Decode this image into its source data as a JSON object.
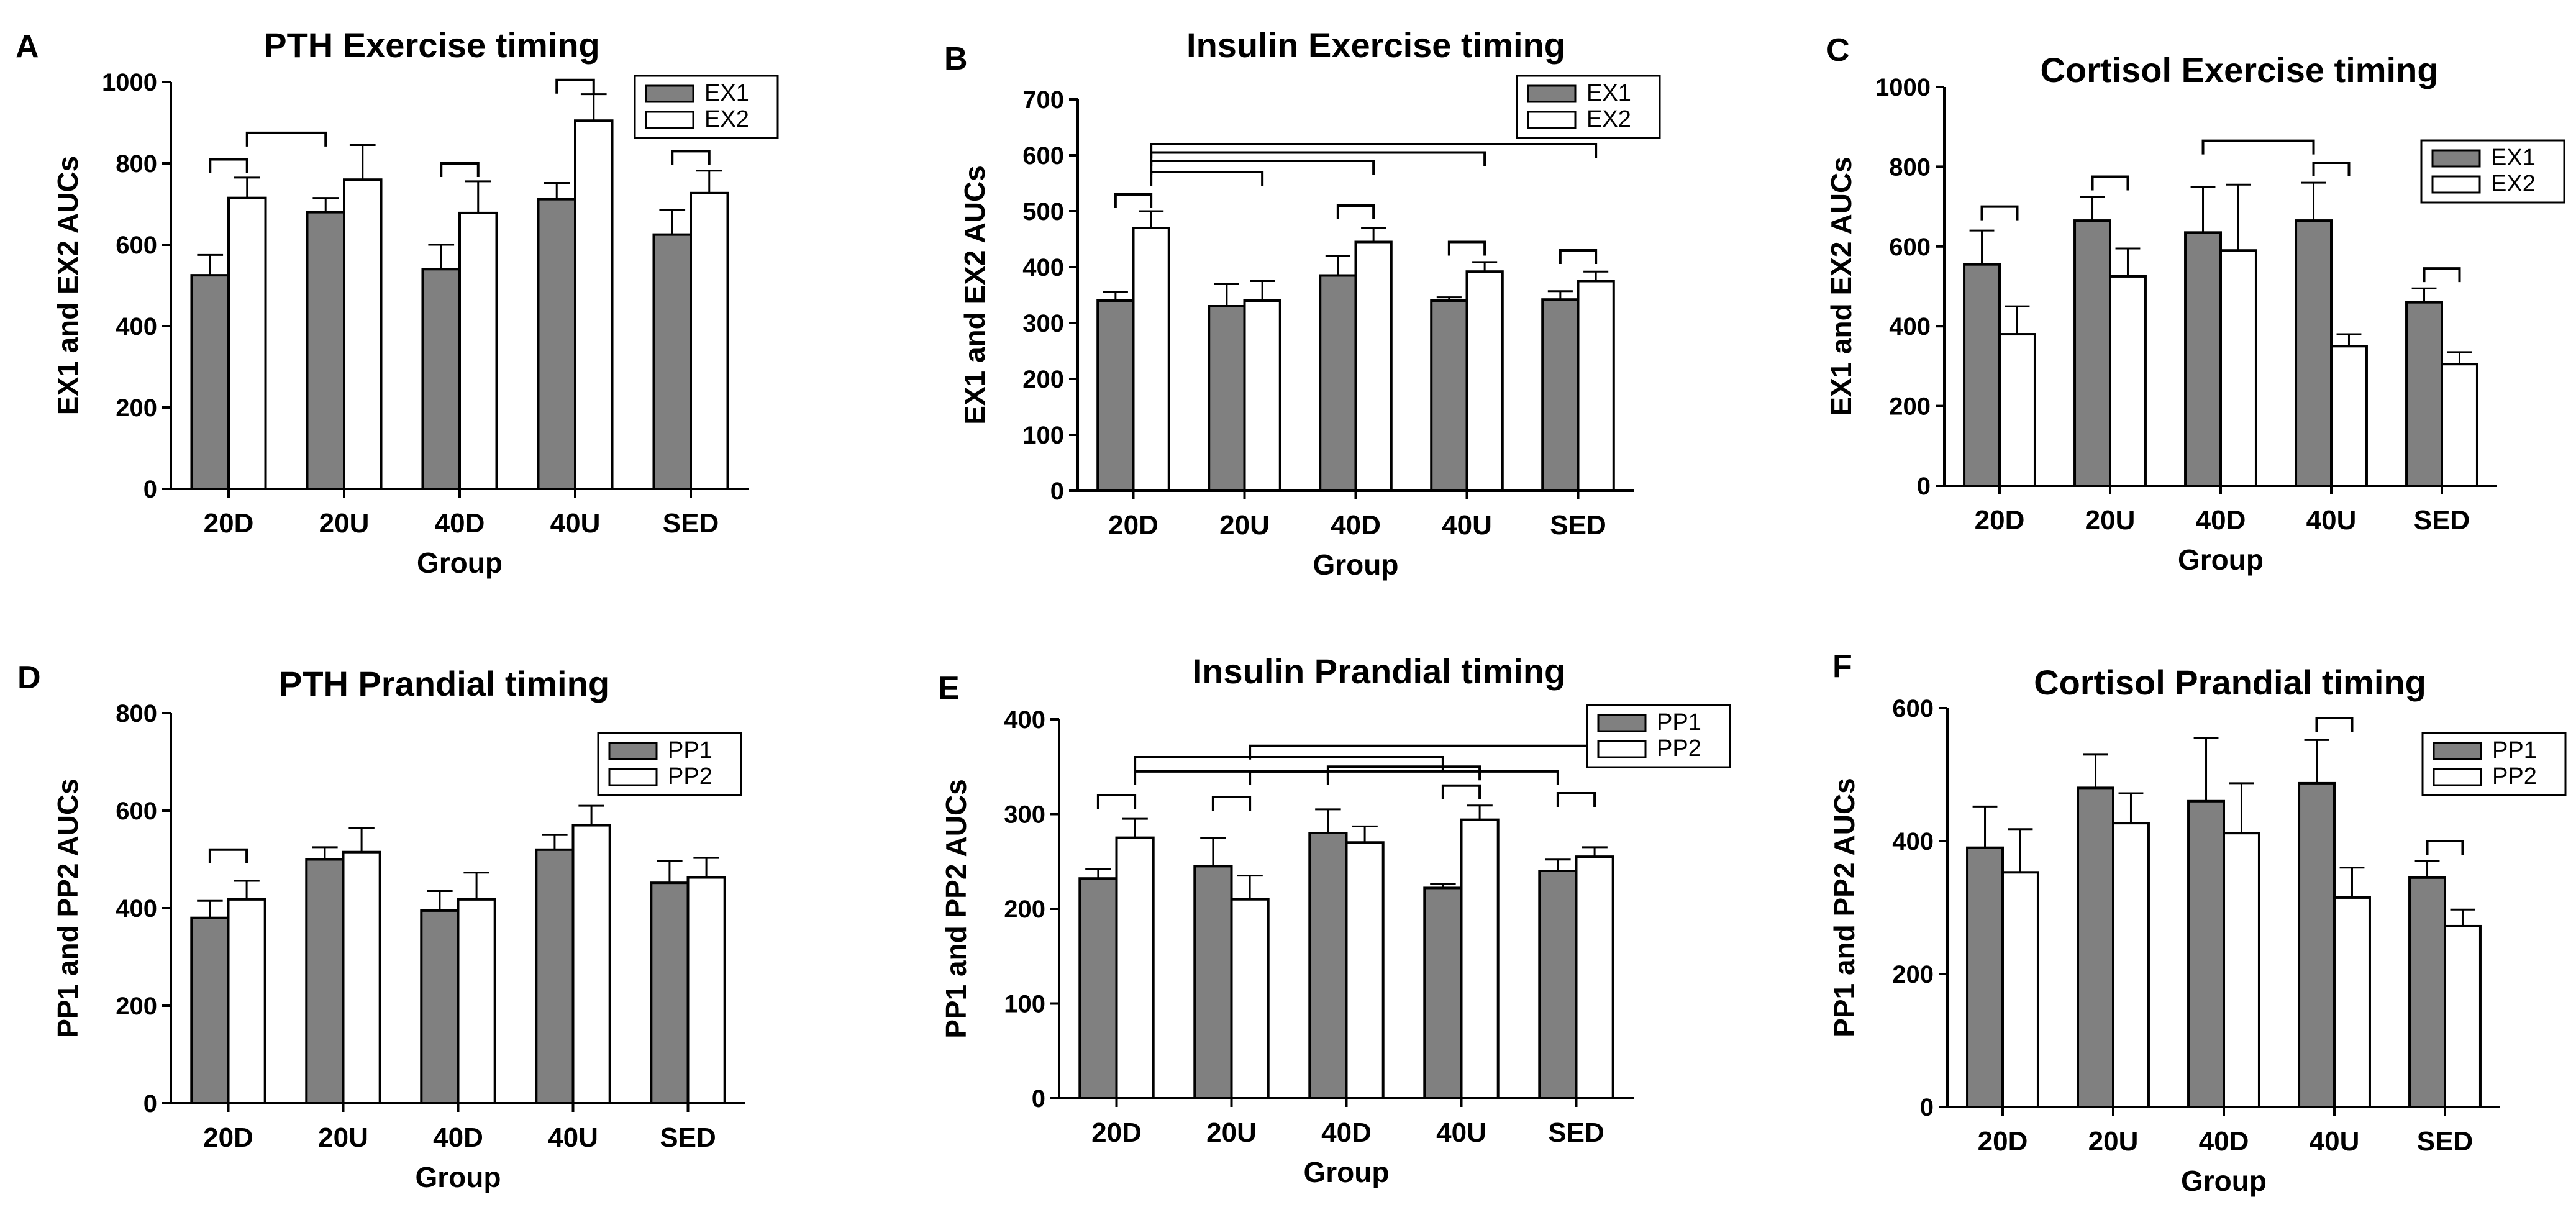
{
  "figure": {
    "layout": "2 rows x 3 panels"
  },
  "chart_data": [
    {
      "panel": "A",
      "type": "bar",
      "title": "PTH Exercise timing",
      "xlabel": "Group",
      "ylabel": "EX1 and EX2 AUCs",
      "ylim": [
        0,
        1000
      ],
      "yticks": [
        0,
        200,
        400,
        600,
        800,
        1000
      ],
      "categories": [
        "20D",
        "20U",
        "40D",
        "40U",
        "SED"
      ],
      "legend_position": "top-right",
      "series": [
        {
          "name": "EX1",
          "values": [
            525,
            680,
            540,
            712,
            625
          ],
          "errors": [
            50,
            35,
            60,
            40,
            60
          ],
          "color": "#808080"
        },
        {
          "name": "EX2",
          "values": [
            715,
            760,
            678,
            905,
            727
          ],
          "errors": [
            50,
            85,
            78,
            65,
            55
          ],
          "color": "#ffffff"
        }
      ],
      "significance": [
        {
          "a": [
            0,
            0
          ],
          "b": [
            0,
            1
          ],
          "y": 810
        },
        {
          "a": [
            2,
            0
          ],
          "b": [
            2,
            1
          ],
          "y": 800
        },
        {
          "a": [
            3,
            0
          ],
          "b": [
            3,
            1
          ],
          "y": 1005
        },
        {
          "a": [
            4,
            0
          ],
          "b": [
            4,
            1
          ],
          "y": 830
        },
        {
          "a": [
            0,
            1
          ],
          "b": [
            1,
            0
          ],
          "y": 875
        }
      ]
    },
    {
      "panel": "B",
      "type": "bar",
      "title": "Insulin Exercise timing",
      "xlabel": "Group",
      "ylabel": "EX1 and EX2 AUCs",
      "ylim": [
        0,
        700
      ],
      "yticks": [
        0,
        100,
        200,
        300,
        400,
        500,
        600,
        700
      ],
      "categories": [
        "20D",
        "20U",
        "40D",
        "40U",
        "SED"
      ],
      "legend_position": "top-right",
      "series": [
        {
          "name": "EX1",
          "values": [
            340,
            330,
            385,
            340,
            342
          ],
          "errors": [
            15,
            40,
            35,
            6,
            15
          ],
          "color": "#808080"
        },
        {
          "name": "EX2",
          "values": [
            470,
            340,
            445,
            392,
            375
          ],
          "errors": [
            30,
            35,
            25,
            17,
            17
          ],
          "color": "#ffffff"
        }
      ],
      "significance": [
        {
          "a": [
            0,
            0
          ],
          "b": [
            0,
            1
          ],
          "y": 530
        },
        {
          "a": [
            2,
            0
          ],
          "b": [
            2,
            1
          ],
          "y": 510
        },
        {
          "a": [
            3,
            0
          ],
          "b": [
            3,
            1
          ],
          "y": 445
        },
        {
          "a": [
            4,
            0
          ],
          "b": [
            4,
            1
          ],
          "y": 430
        },
        {
          "a": [
            0,
            1
          ],
          "b": [
            1,
            1
          ],
          "y": 570
        },
        {
          "a": [
            0,
            1
          ],
          "b": [
            2,
            1
          ],
          "y": 590
        },
        {
          "a": [
            0,
            1
          ],
          "b": [
            3,
            1
          ],
          "y": 605
        },
        {
          "a": [
            0,
            1
          ],
          "b": [
            4,
            1
          ],
          "y": 620
        }
      ]
    },
    {
      "panel": "C",
      "type": "bar",
      "title": "Cortisol Exercise timing",
      "xlabel": "Group",
      "ylabel": "EX1 and EX2 AUCs",
      "ylim": [
        0,
        1000
      ],
      "yticks": [
        0,
        200,
        400,
        600,
        800,
        1000
      ],
      "categories": [
        "20D",
        "20U",
        "40D",
        "40U",
        "SED"
      ],
      "legend_position": "top-right",
      "series": [
        {
          "name": "EX1",
          "values": [
            555,
            665,
            635,
            665,
            460
          ],
          "errors": [
            85,
            60,
            115,
            95,
            35
          ],
          "color": "#808080"
        },
        {
          "name": "EX2",
          "values": [
            380,
            525,
            590,
            350,
            305
          ],
          "errors": [
            70,
            70,
            165,
            30,
            30
          ],
          "color": "#ffffff"
        }
      ],
      "significance": [
        {
          "a": [
            0,
            0
          ],
          "b": [
            0,
            1
          ],
          "y": 700
        },
        {
          "a": [
            1,
            0
          ],
          "b": [
            1,
            1
          ],
          "y": 775
        },
        {
          "a": [
            3,
            0
          ],
          "b": [
            3,
            1
          ],
          "y": 810
        },
        {
          "a": [
            4,
            0
          ],
          "b": [
            4,
            1
          ],
          "y": 545
        },
        {
          "a": [
            2,
            0
          ],
          "b": [
            3,
            0
          ],
          "y": 865
        }
      ]
    },
    {
      "panel": "D",
      "type": "bar",
      "title": "PTH Prandial timing",
      "xlabel": "Group",
      "ylabel": "PP1 and PP2 AUCs",
      "ylim": [
        0,
        800
      ],
      "yticks": [
        0,
        200,
        400,
        600,
        800
      ],
      "categories": [
        "20D",
        "20U",
        "40D",
        "40U",
        "SED"
      ],
      "legend_position": "top-right",
      "series": [
        {
          "name": "PP1",
          "values": [
            380,
            500,
            395,
            520,
            452
          ],
          "errors": [
            35,
            25,
            40,
            30,
            45
          ],
          "color": "#808080"
        },
        {
          "name": "PP2",
          "values": [
            418,
            515,
            418,
            570,
            463
          ],
          "errors": [
            38,
            50,
            55,
            40,
            40
          ],
          "color": "#ffffff"
        }
      ],
      "significance": [
        {
          "a": [
            0,
            0
          ],
          "b": [
            0,
            1
          ],
          "y": 520
        }
      ]
    },
    {
      "panel": "E",
      "type": "bar",
      "title": "Insulin Prandial timing",
      "xlabel": "Group",
      "ylabel": "PP1 and PP2 AUCs",
      "ylim": [
        0,
        400
      ],
      "yticks": [
        0,
        100,
        200,
        300,
        400
      ],
      "categories": [
        "20D",
        "20U",
        "40D",
        "40U",
        "SED"
      ],
      "legend_position": "top-right",
      "series": [
        {
          "name": "PP1",
          "values": [
            232,
            245,
            280,
            222,
            240
          ],
          "errors": [
            10,
            30,
            25,
            4,
            12
          ],
          "color": "#808080"
        },
        {
          "name": "PP2",
          "values": [
            275,
            210,
            270,
            294,
            255
          ],
          "errors": [
            20,
            25,
            17,
            15,
            10
          ],
          "color": "#ffffff"
        }
      ],
      "significance": [
        {
          "a": [
            0,
            0
          ],
          "b": [
            0,
            1
          ],
          "y": 320
        },
        {
          "a": [
            1,
            0
          ],
          "b": [
            1,
            1
          ],
          "y": 318
        },
        {
          "a": [
            3,
            0
          ],
          "b": [
            3,
            1
          ],
          "y": 330
        },
        {
          "a": [
            4,
            0
          ],
          "b": [
            4,
            1
          ],
          "y": 322
        },
        {
          "a": [
            0,
            1
          ],
          "b": [
            2,
            0
          ],
          "y": 345
        },
        {
          "a": [
            2,
            0
          ],
          "b": [
            3,
            1
          ],
          "y": 350
        },
        {
          "a": [
            0,
            1
          ],
          "b": [
            3,
            0
          ],
          "y": 360
        },
        {
          "a": [
            1,
            1
          ],
          "b": [
            4,
            0
          ],
          "y": 345
        },
        {
          "a": [
            1,
            1
          ],
          "b": [
            4,
            1
          ],
          "y": 372
        }
      ]
    },
    {
      "panel": "F",
      "type": "bar",
      "title": "Cortisol  Prandial timing",
      "xlabel": "Group",
      "ylabel": "PP1 and PP2 AUCs",
      "ylim": [
        0,
        600
      ],
      "yticks": [
        0,
        200,
        400,
        600
      ],
      "categories": [
        "20D",
        "20U",
        "40D",
        "40U",
        "SED"
      ],
      "legend_position": "top-right",
      "series": [
        {
          "name": "PP1",
          "values": [
            390,
            480,
            460,
            487,
            345
          ],
          "errors": [
            62,
            50,
            95,
            65,
            25
          ],
          "color": "#808080"
        },
        {
          "name": "PP2",
          "values": [
            353,
            427,
            412,
            315,
            272
          ],
          "errors": [
            65,
            45,
            75,
            45,
            25
          ],
          "color": "#ffffff"
        }
      ],
      "significance": [
        {
          "a": [
            3,
            0
          ],
          "b": [
            3,
            1
          ],
          "y": 585
        },
        {
          "a": [
            4,
            0
          ],
          "b": [
            4,
            1
          ],
          "y": 400
        }
      ]
    }
  ]
}
